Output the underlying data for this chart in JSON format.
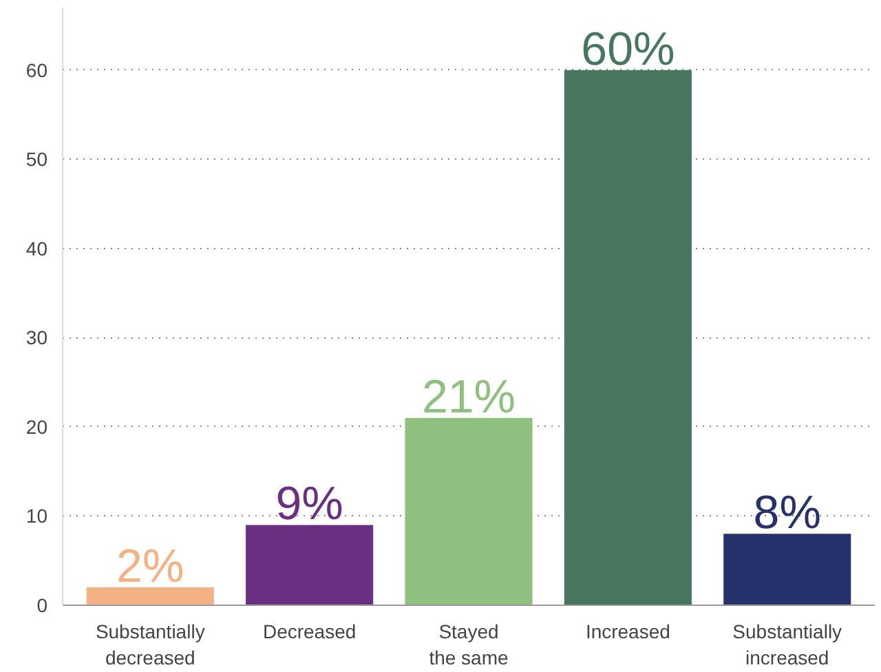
{
  "chart_data": {
    "type": "bar",
    "categories": [
      "Substantially decreased",
      "Decreased",
      "Stayed the same",
      "Increased",
      "Substantially increased"
    ],
    "values": [
      2,
      9,
      21,
      60,
      8
    ],
    "colors": [
      "#f4b183",
      "#6a2f80",
      "#8fc07f",
      "#47775e",
      "#27316b"
    ],
    "value_labels": [
      "2%",
      "9%",
      "21%",
      "60%",
      "8%"
    ],
    "ylim": [
      0,
      67
    ],
    "yticks": [
      0,
      10,
      20,
      30,
      40,
      50,
      60
    ],
    "grid": "y"
  }
}
